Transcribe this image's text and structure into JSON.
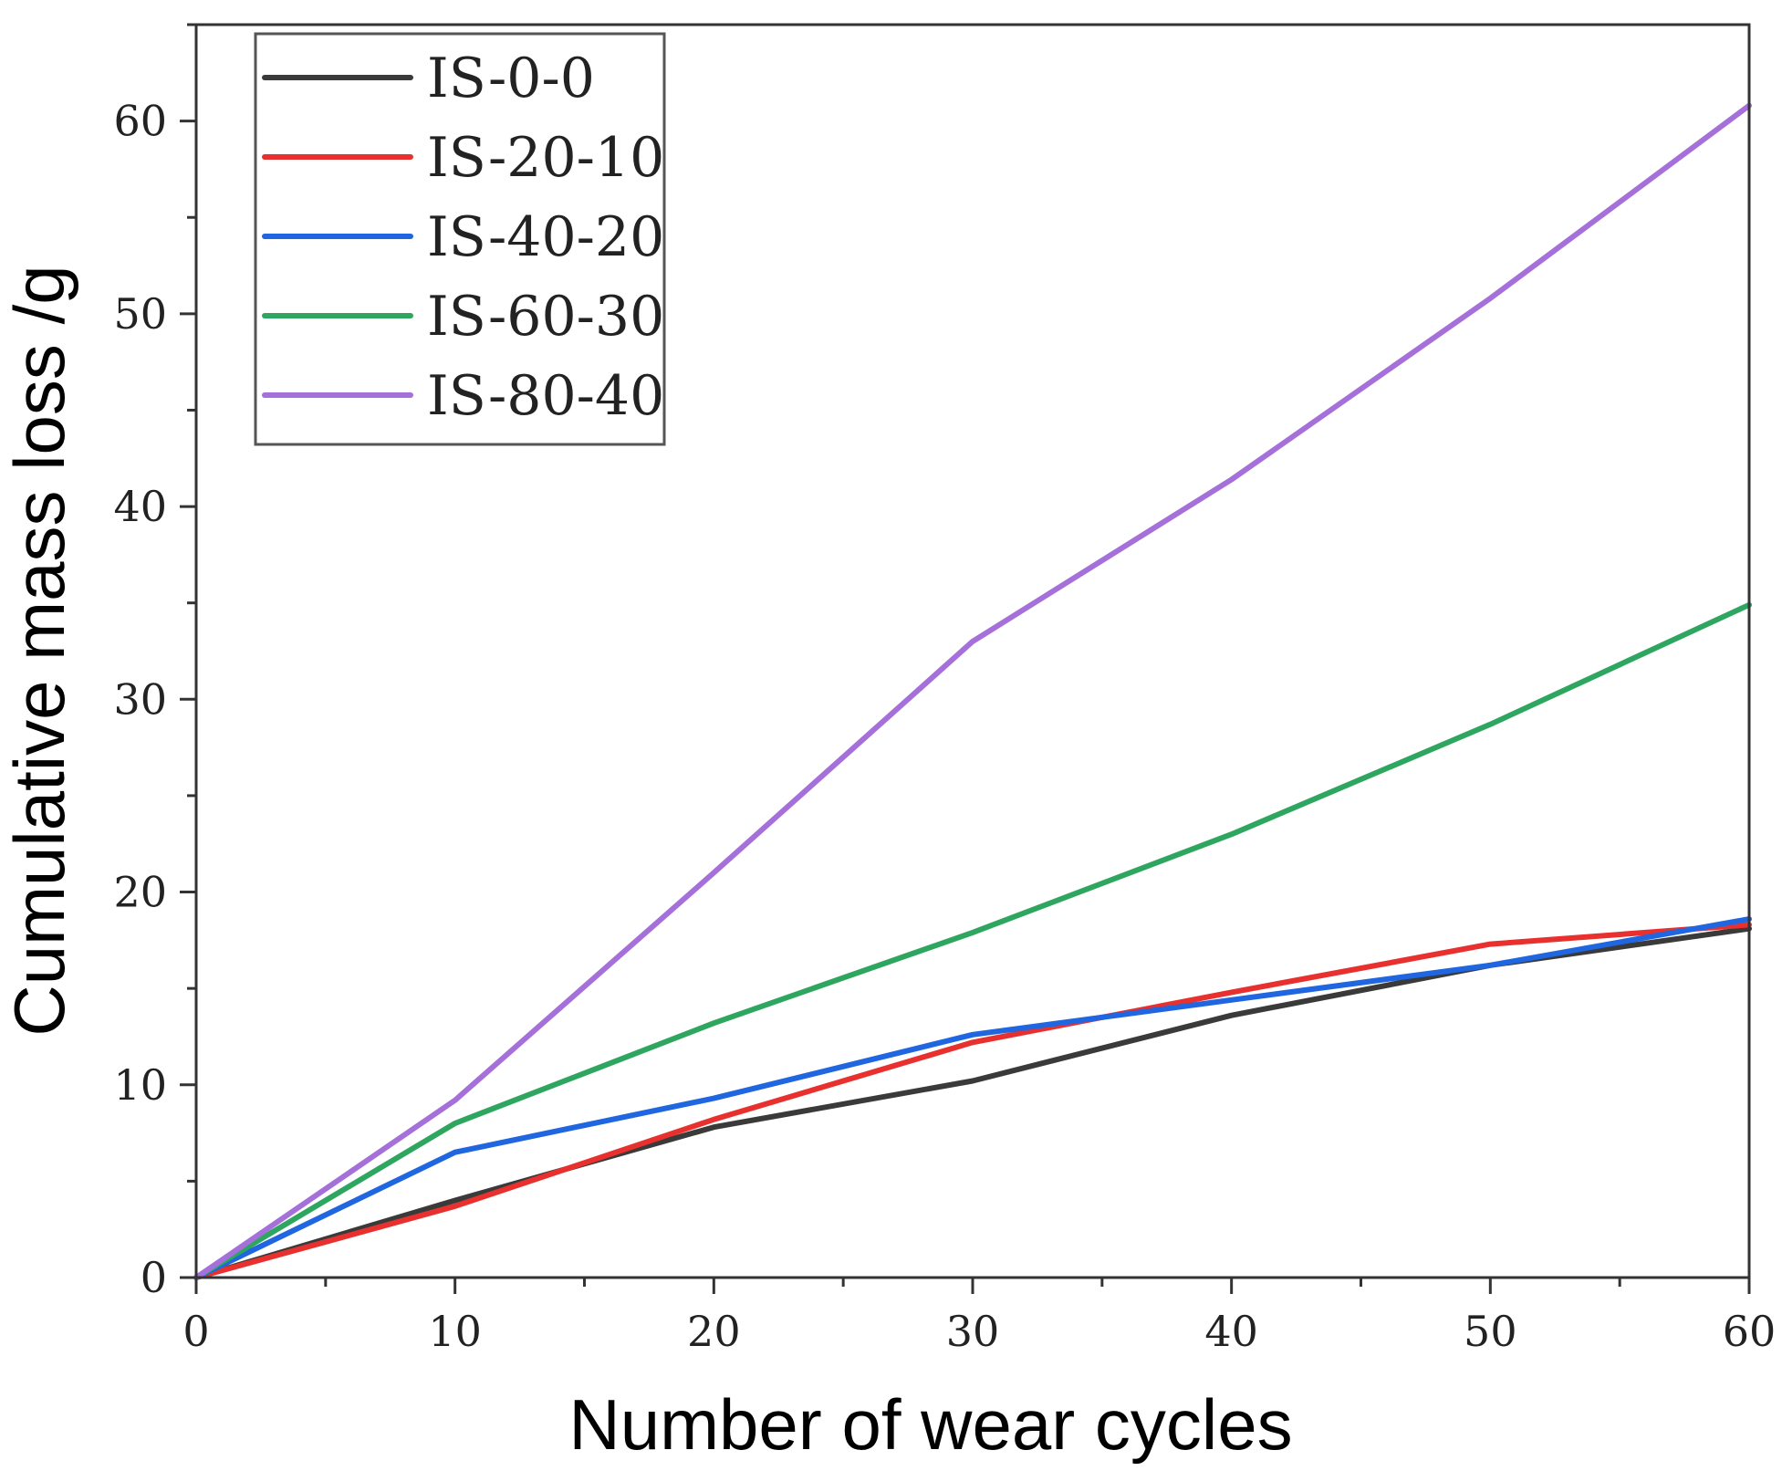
{
  "chart_data": {
    "type": "line",
    "title": "",
    "xlabel": "Number of wear cycles",
    "ylabel": "Cumulative mass loss /g",
    "xlim": [
      0,
      60
    ],
    "ylim": [
      0,
      65
    ],
    "xticks": [
      0,
      10,
      20,
      30,
      40,
      50,
      60
    ],
    "yticks": [
      0,
      10,
      20,
      30,
      40,
      50,
      60
    ],
    "xtick_labels": [
      "0",
      "10",
      "20",
      "30",
      "40",
      "50",
      "60"
    ],
    "ytick_labels": [
      "0",
      "10",
      "20",
      "30",
      "40",
      "50",
      "60"
    ],
    "grid": false,
    "legend_position": "top-left",
    "x": [
      0,
      10,
      20,
      30,
      40,
      50,
      60
    ],
    "series": [
      {
        "name": "IS-0-0",
        "color": "#3a3a3a",
        "values": [
          0,
          4.0,
          7.8,
          10.2,
          13.6,
          16.2,
          18.1
        ]
      },
      {
        "name": "IS-20-10",
        "color": "#e8312f",
        "values": [
          0,
          3.7,
          8.2,
          12.2,
          14.8,
          17.3,
          18.3
        ]
      },
      {
        "name": "IS-40-20",
        "color": "#1f66e0",
        "values": [
          0,
          6.5,
          9.3,
          12.6,
          14.4,
          16.2,
          18.6
        ]
      },
      {
        "name": "IS-60-30",
        "color": "#2ea660",
        "values": [
          0,
          8.0,
          13.2,
          17.9,
          23.0,
          28.7,
          34.9
        ]
      },
      {
        "name": "IS-80-40",
        "color": "#a570da",
        "values": [
          0,
          9.2,
          21.0,
          33.0,
          41.4,
          50.8,
          60.8
        ]
      }
    ]
  }
}
